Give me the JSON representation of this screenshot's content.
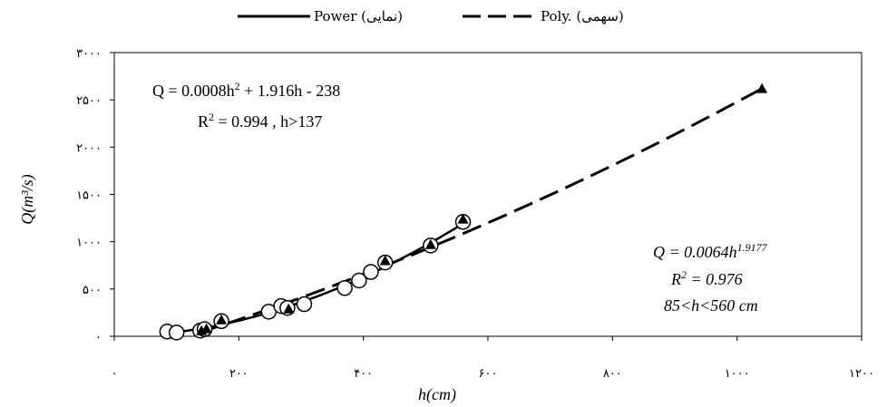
{
  "chart_data": {
    "type": "scatter",
    "xlabel": "h(cm)",
    "ylabel": "Q(m³/s)",
    "xlim": [
      0,
      1200
    ],
    "ylim": [
      0,
      3000
    ],
    "x_ticks": [
      0,
      200,
      400,
      600,
      800,
      1000,
      1200
    ],
    "x_tick_labels": [
      "۰",
      "۲۰۰",
      "۴۰۰",
      "۶۰۰",
      "۸۰۰",
      "۱۰۰۰",
      "۱۲۰۰"
    ],
    "y_ticks": [
      0,
      500,
      1000,
      1500,
      2000,
      2500,
      3000
    ],
    "y_tick_labels": [
      "۰",
      "۵۰۰",
      "۱۰۰۰",
      "۱۵۰۰",
      "۲۰۰۰",
      "۲۵۰۰",
      "۳۰۰۰"
    ],
    "grid": false,
    "legend": {
      "placement": "top",
      "entries": [
        {
          "label": "Power (نمایی)",
          "style": "solid"
        },
        {
          "label": "Poly. (سهمی)",
          "style": "dashed"
        }
      ]
    },
    "series": [
      {
        "marker": "circle",
        "points": [
          [
            85,
            50
          ],
          [
            100,
            40
          ],
          [
            138,
            60
          ],
          [
            145,
            75
          ],
          [
            172,
            160
          ],
          [
            248,
            260
          ],
          [
            268,
            320
          ],
          [
            278,
            300
          ],
          [
            305,
            340
          ],
          [
            370,
            510
          ],
          [
            393,
            590
          ],
          [
            412,
            680
          ],
          [
            435,
            780
          ],
          [
            508,
            960
          ],
          [
            560,
            1210
          ]
        ]
      },
      {
        "marker": "triangle",
        "points": [
          [
            140,
            60
          ],
          [
            148,
            80
          ],
          [
            172,
            175
          ],
          [
            280,
            290
          ],
          [
            435,
            800
          ],
          [
            508,
            970
          ],
          [
            560,
            1240
          ],
          [
            1040,
            2620
          ]
        ]
      }
    ],
    "fits": [
      {
        "kind": "power",
        "style": "solid",
        "coef": 0.0064,
        "exp": 1.9177,
        "range": [
          85,
          560
        ]
      },
      {
        "kind": "poly",
        "style": "dashed",
        "a": 0.0008,
        "b": 1.916,
        "c": -238,
        "range": [
          137,
          1040
        ]
      }
    ],
    "annotations": {
      "poly_eq_main": "Q = 0.0008h",
      "poly_eq_sup": "2",
      "poly_eq_rest": " + 1.916h - 238",
      "poly_r2_main": "R",
      "poly_r2_sup": "2",
      "poly_r2_rest": " = 0.994 , h>137",
      "power_eq_main": "Q = 0.0064h",
      "power_eq_sup": "1.9177",
      "power_r2_main": "R",
      "power_r2_sup": "2",
      "power_r2_rest": " = 0.976",
      "power_range": "85<h<560 cm"
    }
  }
}
